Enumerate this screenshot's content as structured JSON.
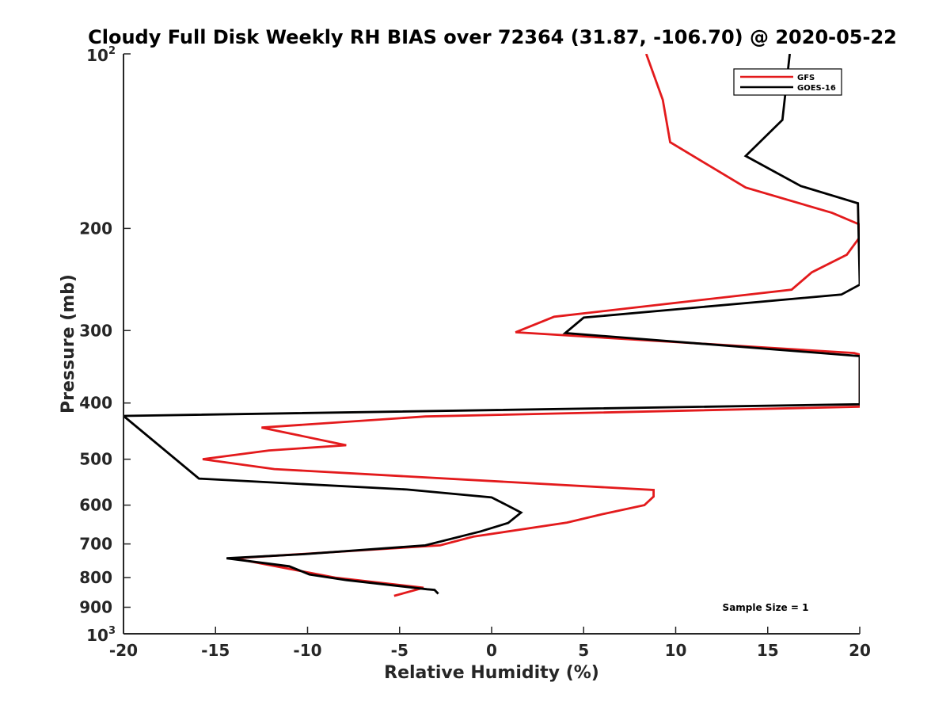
{
  "chart_data": {
    "type": "line",
    "title": "Cloudy Full Disk Weekly RH BIAS over 72364 (31.87, -106.70) @ 2020-05-22",
    "xlabel": "Relative Humidity (%)",
    "ylabel": "Pressure (mb)",
    "xlim": [
      -20,
      20
    ],
    "ylim": [
      100,
      1000
    ],
    "y_scale": "log",
    "y_reversed": true,
    "grid": false,
    "legend_position": "top-right",
    "x_ticks": [
      -20,
      -15,
      -10,
      -5,
      0,
      5,
      10,
      15,
      20
    ],
    "x_tick_labels": [
      "-20",
      "-15",
      "-10",
      "-5",
      "0",
      "5",
      "10",
      "15",
      "20"
    ],
    "y_ticks": [
      100,
      200,
      300,
      400,
      500,
      600,
      700,
      800,
      900,
      1000
    ],
    "y_tick_labels": [
      {
        "base": "10",
        "exp": "2"
      },
      {
        "base": "200",
        "exp": ""
      },
      {
        "base": "300",
        "exp": ""
      },
      {
        "base": "400",
        "exp": ""
      },
      {
        "base": "500",
        "exp": ""
      },
      {
        "base": "600",
        "exp": ""
      },
      {
        "base": "700",
        "exp": ""
      },
      {
        "base": "800",
        "exp": ""
      },
      {
        "base": "900",
        "exp": ""
      },
      {
        "base": "10",
        "exp": "3"
      }
    ],
    "annotation": "Sample Size = 1",
    "series": [
      {
        "name": "GFS",
        "color": "#e31a1c",
        "points": [
          [
            8.4,
            100
          ],
          [
            9.3,
            120
          ],
          [
            9.7,
            142
          ],
          [
            13.8,
            170
          ],
          [
            18.5,
            188
          ],
          [
            20.0,
            197
          ],
          [
            20.0,
            207
          ],
          [
            19.3,
            222
          ],
          [
            17.4,
            238
          ],
          [
            16.3,
            255
          ],
          [
            3.4,
            284
          ],
          [
            1.3,
            302
          ],
          [
            19.7,
            328
          ],
          [
            20.0,
            330
          ],
          [
            20.0,
            406
          ],
          [
            -3.6,
            422
          ],
          [
            -12.5,
            441
          ],
          [
            -7.9,
            473
          ],
          [
            -12.1,
            483
          ],
          [
            -15.7,
            500
          ],
          [
            -11.8,
            520
          ],
          [
            8.8,
            565
          ],
          [
            8.8,
            580
          ],
          [
            8.3,
            600
          ],
          [
            6.0,
            622
          ],
          [
            4.1,
            643
          ],
          [
            -1.0,
            680
          ],
          [
            -2.8,
            704
          ],
          [
            -14.0,
            741
          ],
          [
            -8.5,
            800
          ],
          [
            -3.7,
            833
          ],
          [
            -5.3,
            860
          ]
        ]
      },
      {
        "name": "GOES-16",
        "color": "#000000",
        "points": [
          [
            16.2,
            100
          ],
          [
            15.8,
            130
          ],
          [
            13.8,
            150
          ],
          [
            16.8,
            169
          ],
          [
            19.9,
            181
          ],
          [
            20.0,
            250
          ],
          [
            19.0,
            260
          ],
          [
            5.0,
            285
          ],
          [
            4.0,
            303
          ],
          [
            20.0,
            332
          ],
          [
            20.0,
            402
          ],
          [
            -20.0,
            421
          ],
          [
            -15.9,
            540
          ],
          [
            -4.6,
            564
          ],
          [
            0.0,
            582
          ],
          [
            1.0,
            604
          ],
          [
            1.6,
            618
          ],
          [
            0.9,
            644
          ],
          [
            -0.6,
            666
          ],
          [
            -3.6,
            704
          ],
          [
            -10.2,
            729
          ],
          [
            -14.4,
            741
          ],
          [
            -11.0,
            765
          ],
          [
            -9.9,
            790
          ],
          [
            -7.9,
            808
          ],
          [
            -3.5,
            838
          ],
          [
            -3.1,
            840
          ],
          [
            -2.9,
            853
          ]
        ]
      }
    ]
  }
}
